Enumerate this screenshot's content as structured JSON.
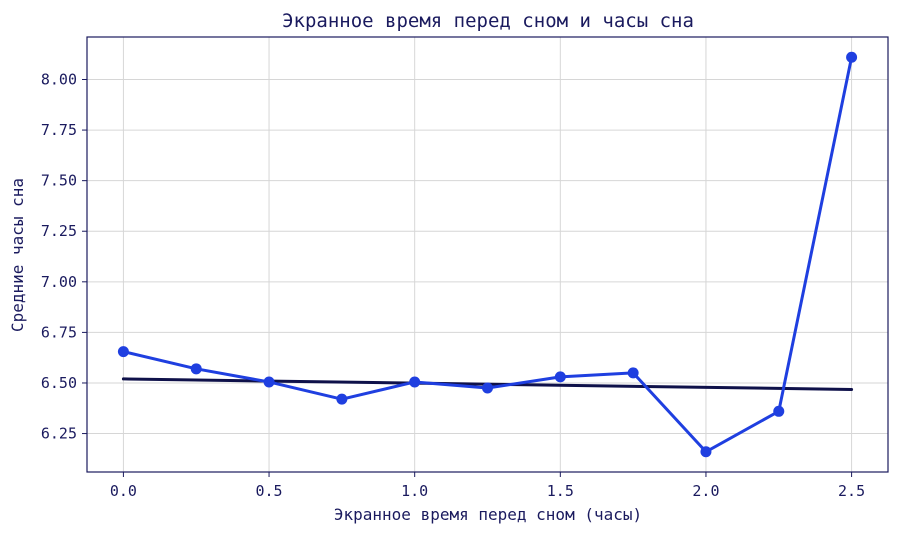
{
  "chart_data": {
    "type": "line",
    "title": "Экранное время перед сном и часы сна",
    "xlabel": "Экранное время перед сном (часы)",
    "ylabel": "Средние часы сна",
    "xlim": [
      -0.125,
      2.625
    ],
    "ylim": [
      6.06,
      8.21
    ],
    "xticks": [
      "0.0",
      "0.5",
      "1.0",
      "1.5",
      "2.0",
      "2.5"
    ],
    "xtick_values": [
      0,
      0.5,
      1.0,
      1.5,
      2.0,
      2.5
    ],
    "yticks": [
      "6.25",
      "6.50",
      "6.75",
      "7.00",
      "7.25",
      "7.50",
      "7.75",
      "8.00"
    ],
    "ytick_values": [
      6.25,
      6.5,
      6.75,
      7.0,
      7.25,
      7.5,
      7.75,
      8.0
    ],
    "grid": true,
    "series": [
      {
        "kind": "line-markers",
        "color": "#1f3fe0",
        "x": [
          0,
          0.25,
          0.5,
          0.75,
          1.0,
          1.25,
          1.5,
          1.75,
          2.0,
          2.25,
          2.5
        ],
        "y": [
          6.655,
          6.57,
          6.505,
          6.42,
          6.505,
          6.475,
          6.53,
          6.55,
          6.16,
          6.36,
          8.11
        ]
      },
      {
        "kind": "trend",
        "color": "#0f114a",
        "x": [
          0,
          2.5
        ],
        "y": [
          6.52,
          6.468
        ]
      }
    ]
  }
}
